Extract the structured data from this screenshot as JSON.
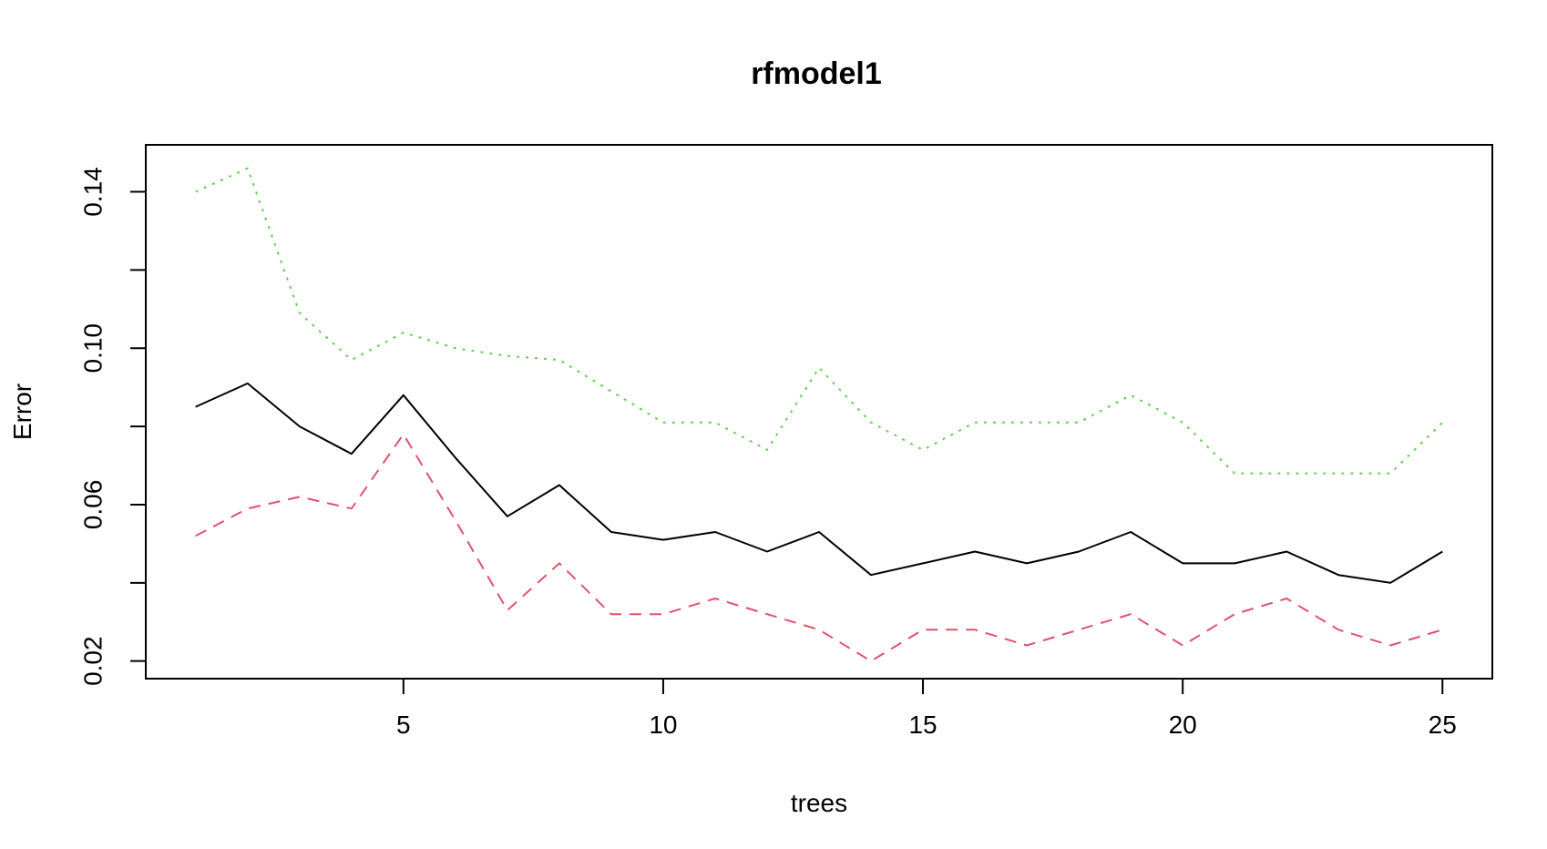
{
  "chart_data": {
    "type": "line",
    "title": "rfmodel1",
    "xlabel": "trees",
    "ylabel": "Error",
    "xlim": [
      0.04,
      25.96
    ],
    "ylim": [
      0.0155,
      0.152
    ],
    "x_ticks": [
      5,
      10,
      15,
      20,
      25
    ],
    "x_tick_labels": [
      "5",
      "10",
      "15",
      "20",
      "25"
    ],
    "y_ticks": [
      0.02,
      0.04,
      0.06,
      0.08,
      0.1,
      0.12,
      0.14
    ],
    "y_tick_labels": [
      "0.02",
      "",
      "0.06",
      "",
      "0.10",
      "",
      "0.14"
    ],
    "grid": false,
    "legend": "none",
    "x": [
      1,
      2,
      3,
      4,
      5,
      6,
      7,
      8,
      9,
      10,
      11,
      12,
      13,
      14,
      15,
      16,
      17,
      18,
      19,
      20,
      21,
      22,
      23,
      24,
      25
    ],
    "series": [
      {
        "color": "#000000",
        "dash": "solid",
        "values": [
          0.085,
          0.091,
          0.08,
          0.073,
          0.088,
          0.072,
          0.057,
          0.065,
          0.053,
          0.051,
          0.053,
          0.048,
          0.053,
          0.042,
          0.045,
          0.048,
          0.045,
          0.048,
          0.053,
          0.045,
          0.045,
          0.048,
          0.042,
          0.04,
          0.048
        ]
      },
      {
        "color": "#DF536B",
        "dash": "dashed",
        "values": [
          0.052,
          0.059,
          0.062,
          0.059,
          0.078,
          0.056,
          0.033,
          0.045,
          0.032,
          0.032,
          0.036,
          0.032,
          0.028,
          0.02,
          0.028,
          0.028,
          0.024,
          0.028,
          0.032,
          0.024,
          0.032,
          0.036,
          0.028,
          0.024,
          0.028
        ]
      },
      {
        "color": "#61D04F",
        "dash": "dotted",
        "values": [
          0.14,
          0.146,
          0.109,
          0.097,
          0.104,
          0.1,
          0.098,
          0.097,
          0.089,
          0.081,
          0.081,
          0.074,
          0.095,
          0.081,
          0.074,
          0.081,
          0.081,
          0.081,
          0.088,
          0.081,
          0.068,
          0.068,
          0.068,
          0.068,
          0.081
        ]
      }
    ]
  }
}
